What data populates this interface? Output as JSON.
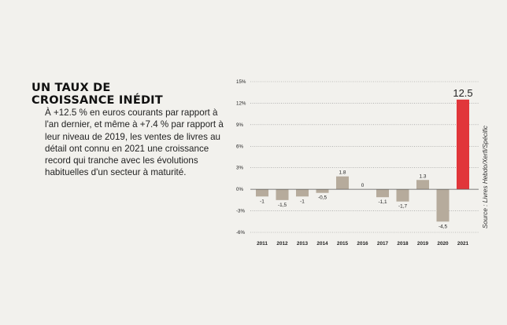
{
  "article": {
    "headline_line1": "UN TAUX DE",
    "headline_line2": "CROISSANCE INÉDIT",
    "body": "À +12.5 % en euros courants par rapport à l'an dernier, et même à +7.4 % par rapport à leur niveau de 2019, les ventes de livres au détail ont connu en 2021 une croissance record qui tranche avec les évolutions habituelles d'un secteur à maturité.",
    "source": "Source : Livres Hebdo/Xerfi/Spécific"
  },
  "colors": {
    "bar": "#b6ab9c",
    "highlight": "#e1363a",
    "grid": "#8c8c8c",
    "zero_line": "#555555"
  },
  "chart_data": {
    "type": "bar",
    "title": "",
    "xlabel": "",
    "ylabel": "",
    "categories": [
      "2011",
      "2012",
      "2013",
      "2014",
      "2015",
      "2016",
      "2017",
      "2018",
      "2019",
      "2020",
      "2021"
    ],
    "values": [
      -1,
      -1.5,
      -1,
      -0.5,
      1.8,
      0,
      -1.1,
      -1.7,
      1.3,
      -4.5,
      12.5
    ],
    "value_labels": [
      "-1",
      "-1,5",
      "-1",
      "-0,5",
      "1.8",
      "0",
      "-1,1",
      "-1,7",
      "1.3",
      "-4,5",
      "12.5"
    ],
    "highlight_index": 10,
    "ylim": [
      -6,
      15
    ],
    "yticks": [
      15,
      12,
      9,
      6,
      3,
      0,
      -3,
      -6
    ],
    "ytick_labels": [
      "15%",
      "12%",
      "9%",
      "6%",
      "3%",
      "0%",
      "-3%",
      "-6%"
    ],
    "grid": true
  }
}
